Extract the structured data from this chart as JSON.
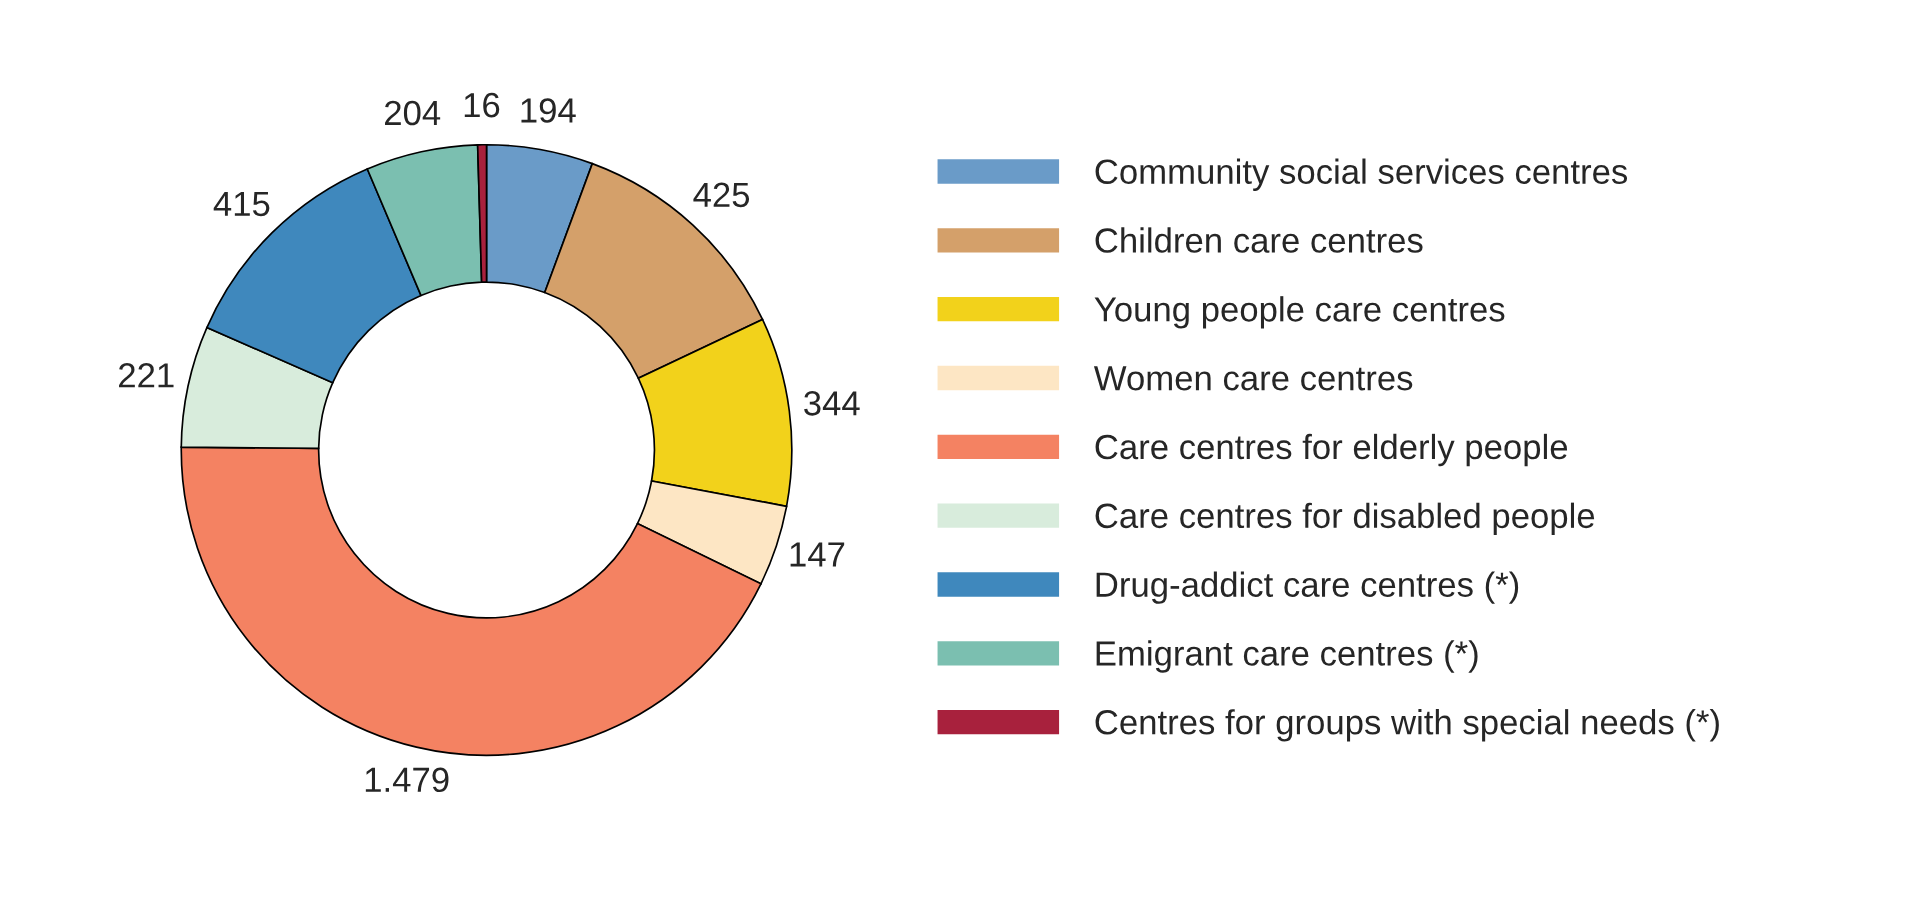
{
  "chart_data": {
    "type": "donut",
    "categories": [
      "Community social services centres",
      "Children care centres",
      "Young people care centres",
      "Women care centres",
      "Care centres for elderly people",
      "Care centres for disabled people",
      "Drug-addict care centres (*)",
      "Emigrant care centres (*)",
      "Centres for groups with special needs (*)"
    ],
    "values": [
      194,
      425,
      344,
      147,
      1479,
      221,
      415,
      204,
      16
    ],
    "value_labels": [
      "194",
      "425",
      "344",
      "147",
      "1.479",
      "221",
      "415",
      "204",
      "16"
    ],
    "colors": [
      "#6a9bc8",
      "#d4a06a",
      "#f2d21b",
      "#fde6c4",
      "#f48262",
      "#d8ecdc",
      "#3f88bd",
      "#7bbfb0",
      "#a8213d"
    ],
    "legend": "right"
  }
}
